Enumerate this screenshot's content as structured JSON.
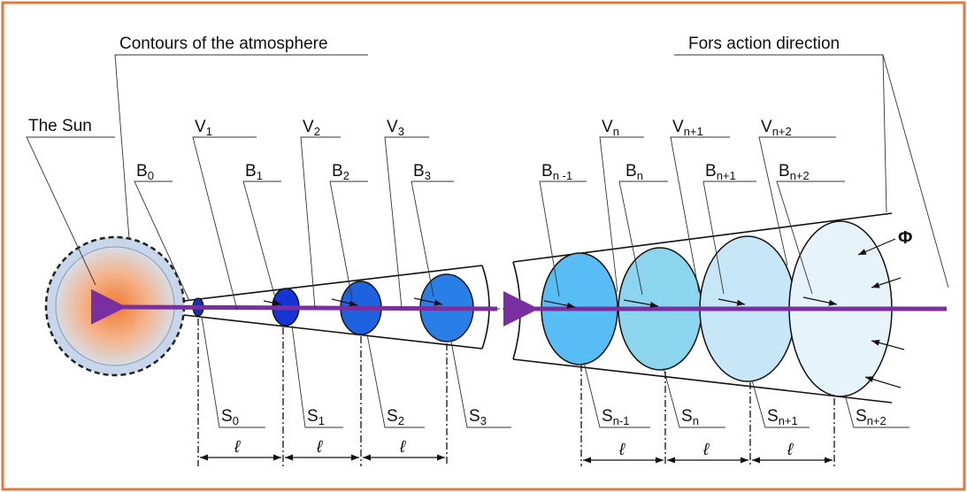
{
  "labels": {
    "atmosphere": "Contours of the atmosphere",
    "force": "Fors action direction",
    "sun": "The Sun",
    "phi": "Φ",
    "ell": "ℓ"
  },
  "B": [
    {
      "base": "B",
      "sub": "0"
    },
    {
      "base": "B",
      "sub": "1"
    },
    {
      "base": "B",
      "sub": "2"
    },
    {
      "base": "B",
      "sub": "3"
    },
    {
      "base": "B",
      "sub": "n -1"
    },
    {
      "base": "B",
      "sub": "n"
    },
    {
      "base": "B",
      "sub": "n+1"
    },
    {
      "base": "B",
      "sub": "n+2"
    }
  ],
  "V": [
    {
      "base": "V",
      "sub": "1"
    },
    {
      "base": "V",
      "sub": "2"
    },
    {
      "base": "V",
      "sub": "3"
    },
    {
      "base": "V",
      "sub": "n"
    },
    {
      "base": "V",
      "sub": "n+1"
    },
    {
      "base": "V",
      "sub": "n+2"
    }
  ],
  "S": [
    {
      "base": "S",
      "sub": "0"
    },
    {
      "base": "S",
      "sub": "1"
    },
    {
      "base": "S",
      "sub": "2"
    },
    {
      "base": "S",
      "sub": "3"
    },
    {
      "base": "S",
      "sub": "n-1"
    },
    {
      "base": "S",
      "sub": "n"
    },
    {
      "base": "S",
      "sub": "n+1"
    },
    {
      "base": "S",
      "sub": "n+2"
    }
  ],
  "colors": {
    "frame": "#e8763a",
    "arrow": "#7a2fa0",
    "sun_core": "#f07a30",
    "sun_halo": "#c7d6ea"
  }
}
